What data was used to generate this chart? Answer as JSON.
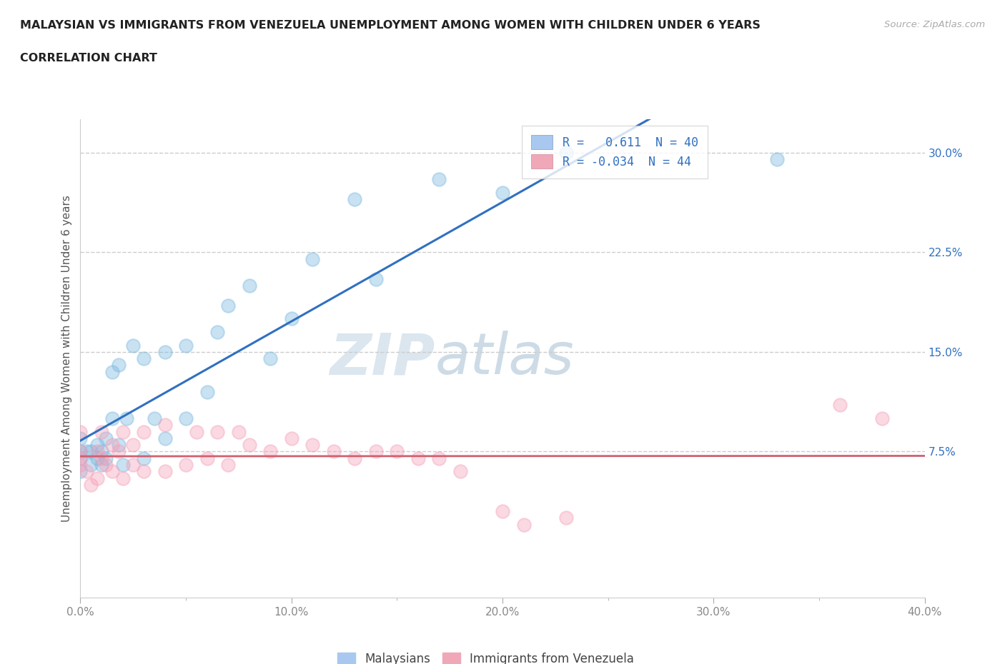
{
  "title_line1": "MALAYSIAN VS IMMIGRANTS FROM VENEZUELA UNEMPLOYMENT AMONG WOMEN WITH CHILDREN UNDER 6 YEARS",
  "title_line2": "CORRELATION CHART",
  "source": "Source: ZipAtlas.com",
  "ylabel": "Unemployment Among Women with Children Under 6 years",
  "xlim": [
    0.0,
    0.4
  ],
  "ylim": [
    -0.035,
    0.325
  ],
  "xtick_labels": [
    "0.0%",
    "",
    "",
    "",
    "",
    "",
    "",
    "",
    "10.0%",
    "",
    "",
    "",
    "",
    "",
    "",
    "",
    "20.0%",
    "",
    "",
    "",
    "",
    "",
    "",
    "",
    "30.0%",
    "",
    "",
    "",
    "",
    "",
    "",
    "",
    "40.0%"
  ],
  "xtick_values": [
    0.0,
    0.0125,
    0.025,
    0.0375,
    0.05,
    0.0625,
    0.075,
    0.0875,
    0.1,
    0.1125,
    0.125,
    0.1375,
    0.15,
    0.1625,
    0.175,
    0.1875,
    0.2,
    0.2125,
    0.225,
    0.2375,
    0.25,
    0.2625,
    0.275,
    0.2875,
    0.3,
    0.3125,
    0.325,
    0.3375,
    0.35,
    0.3625,
    0.375,
    0.3875,
    0.4
  ],
  "xtick_major_labels": [
    "0.0%",
    "10.0%",
    "20.0%",
    "30.0%",
    "40.0%"
  ],
  "xtick_major_values": [
    0.0,
    0.1,
    0.2,
    0.3,
    0.4
  ],
  "ytick_labels": [
    "7.5%",
    "15.0%",
    "22.5%",
    "30.0%"
  ],
  "ytick_values": [
    0.075,
    0.15,
    0.225,
    0.3
  ],
  "watermark_zip": "ZIP",
  "watermark_atlas": "atlas",
  "malaysians_color": "#7ab8e0",
  "venezuela_color": "#f4a0b8",
  "mal_line_color": "#3070c0",
  "ven_line_color": "#d06070",
  "ytick_color": "#3070c0",
  "xtick_color": "#888888",
  "legend_blue_face": "#a8c8f0",
  "legend_pink_face": "#f0a8b8",
  "leg1_text": "R =   0.611  N = 40",
  "leg2_text": "R = -0.034  N = 44",
  "malaysians_x": [
    0.0,
    0.0,
    0.0,
    0.0,
    0.003,
    0.005,
    0.005,
    0.008,
    0.008,
    0.01,
    0.01,
    0.012,
    0.012,
    0.015,
    0.015,
    0.018,
    0.018,
    0.02,
    0.022,
    0.025,
    0.03,
    0.03,
    0.035,
    0.04,
    0.04,
    0.05,
    0.05,
    0.06,
    0.065,
    0.07,
    0.08,
    0.09,
    0.1,
    0.11,
    0.13,
    0.14,
    0.17,
    0.2,
    0.23,
    0.33
  ],
  "malaysians_y": [
    0.06,
    0.07,
    0.075,
    0.085,
    0.075,
    0.065,
    0.075,
    0.07,
    0.08,
    0.065,
    0.075,
    0.07,
    0.085,
    0.1,
    0.135,
    0.08,
    0.14,
    0.065,
    0.1,
    0.155,
    0.07,
    0.145,
    0.1,
    0.085,
    0.15,
    0.1,
    0.155,
    0.12,
    0.165,
    0.185,
    0.2,
    0.145,
    0.175,
    0.22,
    0.265,
    0.205,
    0.28,
    0.27,
    0.3,
    0.295
  ],
  "venezuela_x": [
    0.0,
    0.0,
    0.0,
    0.0,
    0.003,
    0.005,
    0.008,
    0.008,
    0.01,
    0.01,
    0.012,
    0.015,
    0.015,
    0.018,
    0.02,
    0.02,
    0.025,
    0.025,
    0.03,
    0.03,
    0.04,
    0.04,
    0.05,
    0.055,
    0.06,
    0.065,
    0.07,
    0.075,
    0.08,
    0.09,
    0.1,
    0.11,
    0.12,
    0.13,
    0.14,
    0.15,
    0.16,
    0.17,
    0.18,
    0.2,
    0.21,
    0.23,
    0.36,
    0.38
  ],
  "venezuela_y": [
    0.065,
    0.07,
    0.075,
    0.09,
    0.06,
    0.05,
    0.055,
    0.075,
    0.07,
    0.09,
    0.065,
    0.06,
    0.08,
    0.075,
    0.055,
    0.09,
    0.065,
    0.08,
    0.06,
    0.09,
    0.06,
    0.095,
    0.065,
    0.09,
    0.07,
    0.09,
    0.065,
    0.09,
    0.08,
    0.075,
    0.085,
    0.08,
    0.075,
    0.07,
    0.075,
    0.075,
    0.07,
    0.07,
    0.06,
    0.03,
    0.02,
    0.025,
    0.11,
    0.1
  ],
  "bottom_legend_labels": [
    "Malaysians",
    "Immigrants from Venezuela"
  ]
}
